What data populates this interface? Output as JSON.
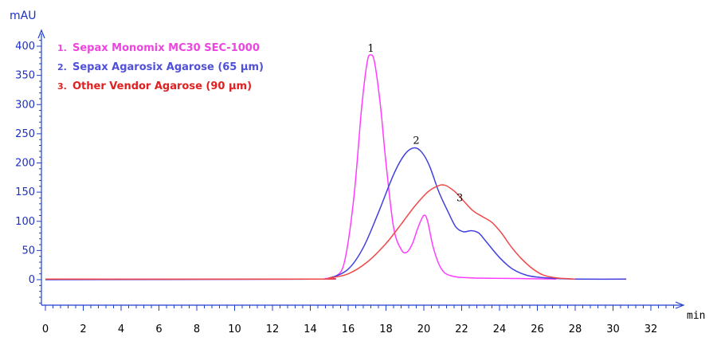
{
  "chart_data": {
    "type": "line",
    "title": "",
    "ylabel": "mAU",
    "xlabel": "min",
    "xlim": [
      0,
      33.5
    ],
    "ylim": [
      -45,
      420
    ],
    "y_ticks": [
      0,
      50,
      100,
      150,
      200,
      250,
      300,
      350,
      400
    ],
    "x_ticks": [
      0,
      2,
      4,
      6,
      8,
      10,
      12,
      14,
      16,
      18,
      20,
      22,
      24,
      26,
      28,
      30,
      32
    ],
    "colors": {
      "axis": "#1f3fd0",
      "tick_label": "#1a2fc8",
      "label_text": "#1f3b7a"
    },
    "legend": [
      {
        "num": "1.",
        "text": "Sepax Monomix MC30 SEC-1000",
        "color": "#ee44e0"
      },
      {
        "num": "2.",
        "text": "Sepax Agarosix Agarose (65 μm)",
        "color": "#5050d8"
      },
      {
        "num": "3.",
        "text": "Other Vendor Agarose (90 μm)",
        "color": "#e02020"
      }
    ],
    "series": [
      {
        "color": "#ff3cff",
        "points": [
          [
            0,
            1
          ],
          [
            14,
            1
          ],
          [
            14.8,
            2
          ],
          [
            15.3,
            5
          ],
          [
            15.8,
            30
          ],
          [
            16.3,
            140
          ],
          [
            16.7,
            290
          ],
          [
            17.0,
            372
          ],
          [
            17.2,
            385
          ],
          [
            17.4,
            372
          ],
          [
            17.7,
            300
          ],
          [
            18.0,
            200
          ],
          [
            18.4,
            90
          ],
          [
            18.8,
            52
          ],
          [
            19.1,
            47
          ],
          [
            19.4,
            62
          ],
          [
            19.7,
            90
          ],
          [
            20.0,
            110
          ],
          [
            20.2,
            100
          ],
          [
            20.5,
            55
          ],
          [
            20.9,
            20
          ],
          [
            21.4,
            7
          ],
          [
            22.5,
            3
          ],
          [
            25,
            2
          ],
          [
            27,
            1
          ]
        ]
      },
      {
        "color": "#4040e0",
        "points": [
          [
            0,
            0
          ],
          [
            14,
            1
          ],
          [
            15,
            3
          ],
          [
            16,
            18
          ],
          [
            16.8,
            55
          ],
          [
            17.6,
            115
          ],
          [
            18.4,
            180
          ],
          [
            19.0,
            215
          ],
          [
            19.5,
            226
          ],
          [
            19.9,
            218
          ],
          [
            20.3,
            195
          ],
          [
            20.8,
            150
          ],
          [
            21.3,
            115
          ],
          [
            21.7,
            90
          ],
          [
            22.1,
            82
          ],
          [
            22.5,
            84
          ],
          [
            22.9,
            80
          ],
          [
            23.3,
            65
          ],
          [
            24,
            38
          ],
          [
            24.7,
            18
          ],
          [
            25.5,
            7
          ],
          [
            26.5,
            3
          ],
          [
            28,
            1
          ],
          [
            30.7,
            1
          ]
        ]
      },
      {
        "color": "#f04848",
        "points": [
          [
            0,
            1
          ],
          [
            14,
            1
          ],
          [
            15,
            3
          ],
          [
            16,
            10
          ],
          [
            17,
            30
          ],
          [
            18,
            62
          ],
          [
            18.8,
            95
          ],
          [
            19.5,
            125
          ],
          [
            20.2,
            150
          ],
          [
            20.7,
            160
          ],
          [
            21.1,
            162
          ],
          [
            21.6,
            152
          ],
          [
            22.1,
            135
          ],
          [
            22.6,
            118
          ],
          [
            23.1,
            108
          ],
          [
            23.6,
            98
          ],
          [
            24.1,
            80
          ],
          [
            24.6,
            57
          ],
          [
            25.1,
            38
          ],
          [
            25.7,
            20
          ],
          [
            26.3,
            8
          ],
          [
            27,
            3
          ],
          [
            28,
            1
          ]
        ]
      }
    ],
    "annotations": [
      {
        "text": "1",
        "x": 17.2,
        "y": 388
      },
      {
        "text": "2",
        "x": 19.6,
        "y": 230
      },
      {
        "text": "3",
        "x": 21.9,
        "y": 132
      }
    ]
  }
}
